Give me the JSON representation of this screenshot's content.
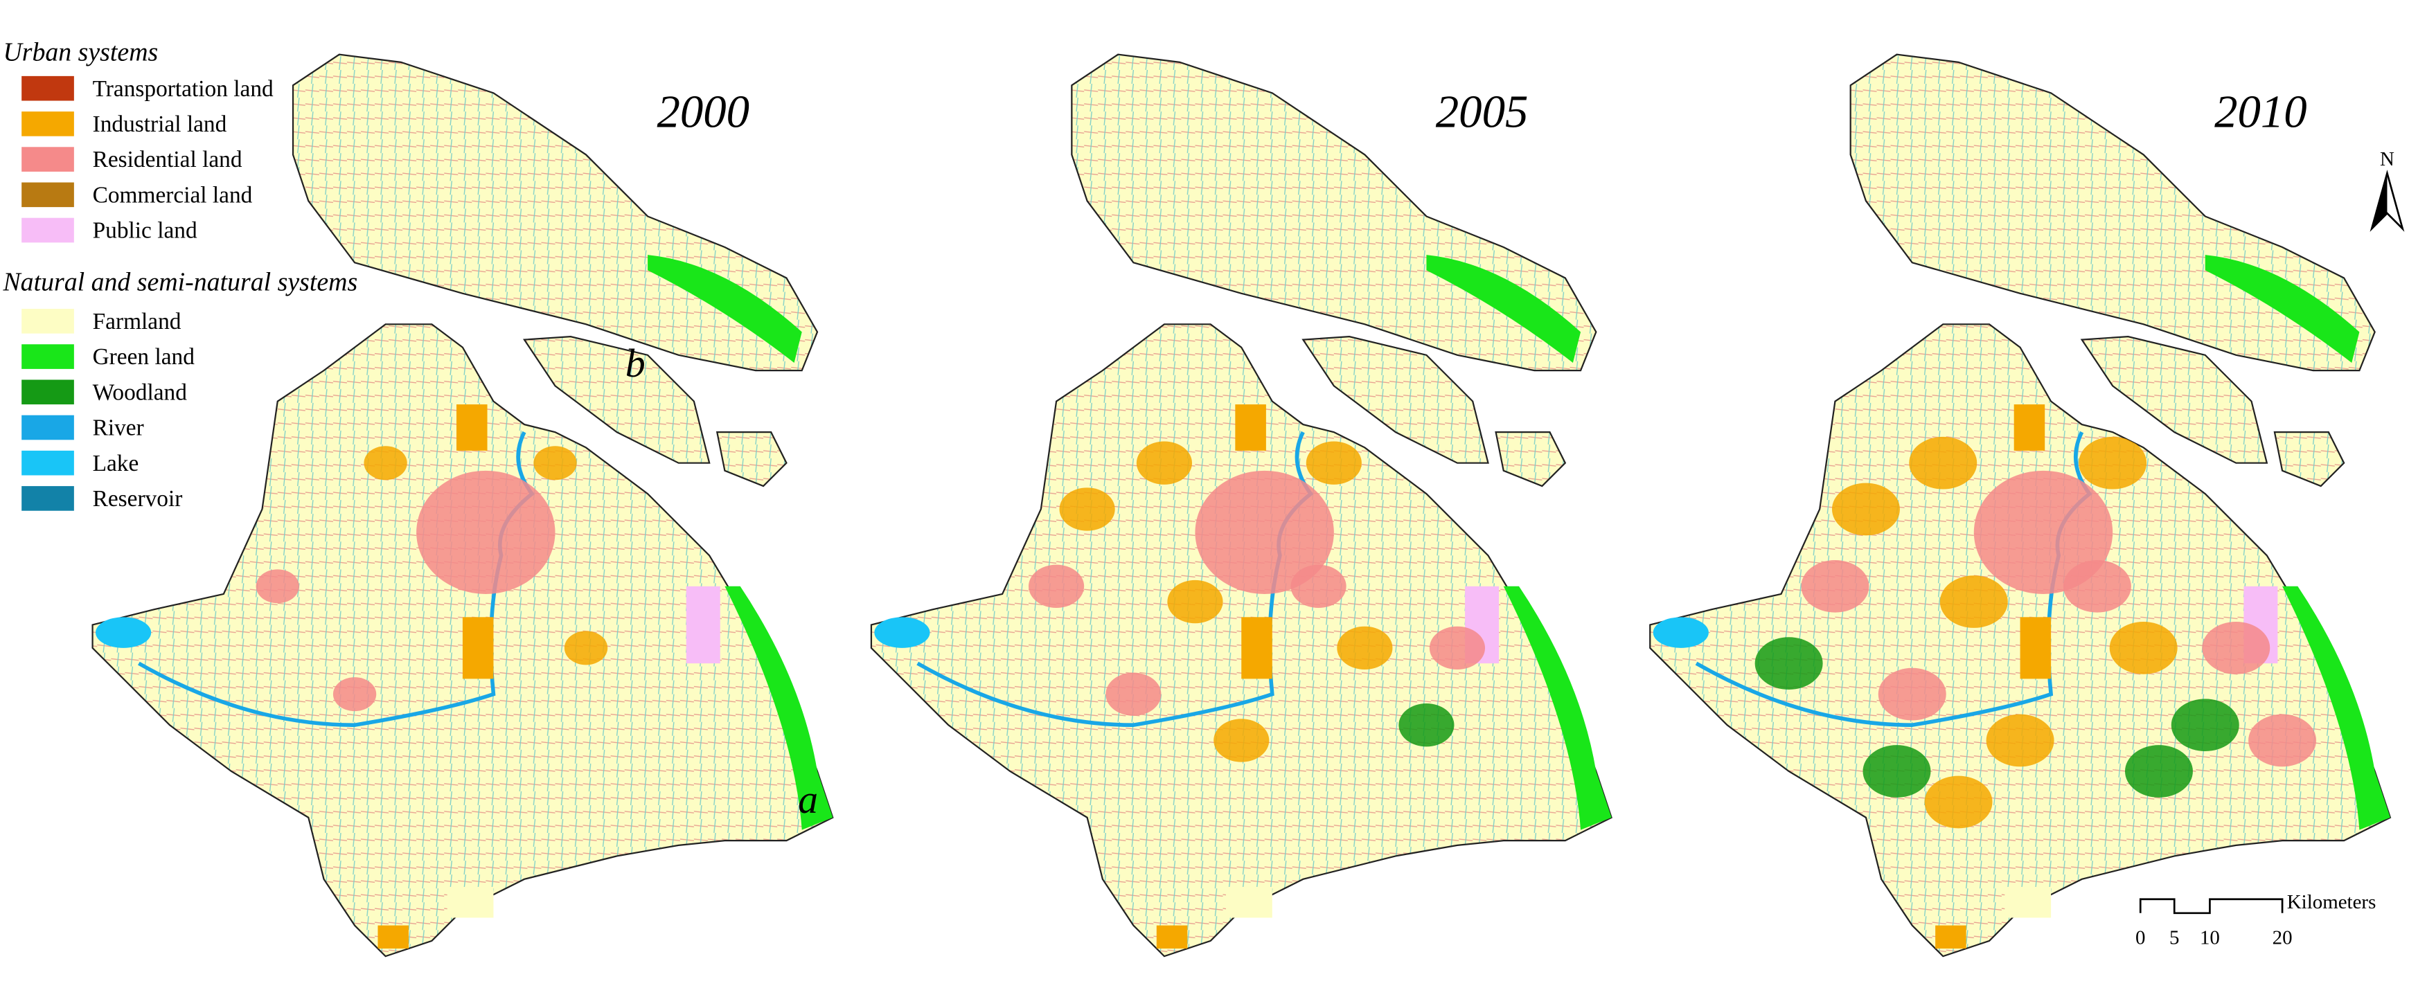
{
  "legend": {
    "urban_title": "Urban systems",
    "urban_items": [
      {
        "label": "Transportation land",
        "color": "#c1380f"
      },
      {
        "label": "Industrial land",
        "color": "#f5a800"
      },
      {
        "label": "Residential land",
        "color": "#f58a8a"
      },
      {
        "label": "Commercial land",
        "color": "#b87a12"
      },
      {
        "label": "Public land",
        "color": "#f7bdf7"
      }
    ],
    "natural_title": "Natural and semi-natural systems",
    "natural_items": [
      {
        "label": "Farmland",
        "color": "#fdfdc4"
      },
      {
        "label": "Green land",
        "color": "#19e619"
      },
      {
        "label": "Woodland",
        "color": "#159a15"
      },
      {
        "label": "River",
        "color": "#19a7e6"
      },
      {
        "label": "Lake",
        "color": "#19c5f7"
      },
      {
        "label": "Reservoir",
        "color": "#1282a8"
      }
    ]
  },
  "panels": [
    {
      "year": "2000"
    },
    {
      "year": "2005"
    },
    {
      "year": "2010"
    }
  ],
  "labels": {
    "a": "a",
    "b": "b"
  },
  "north": "N",
  "scale_bar": {
    "unit": "Kilometers",
    "ticks": [
      "0",
      "5",
      "10",
      "20"
    ]
  }
}
